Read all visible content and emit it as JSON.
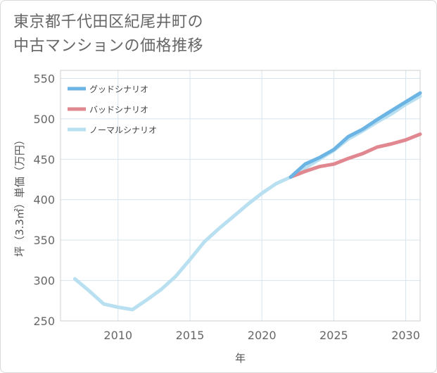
{
  "title_lines": [
    "東京都千代田区紀尾井町の",
    "中古マンションの価格推移"
  ],
  "chart_data": {
    "type": "line",
    "xlabel": "年",
    "ylabel": "坪（3.3㎡）単価（万円）",
    "xlim": [
      2006,
      2031
    ],
    "ylim": [
      250,
      560
    ],
    "x_ticks": [
      2010,
      2015,
      2020,
      2025,
      2030
    ],
    "y_ticks": [
      250,
      300,
      350,
      400,
      450,
      500,
      550
    ],
    "grid": true,
    "legend_position": "top-left",
    "series": [
      {
        "name": "グッドシナリオ",
        "color": "#6cb4e4",
        "x": [
          2022,
          2023,
          2024,
          2025,
          2026,
          2027,
          2028,
          2029,
          2030,
          2031
        ],
        "y": [
          428,
          444,
          452,
          462,
          478,
          487,
          499,
          510,
          521,
          532
        ]
      },
      {
        "name": "バッドシナリオ",
        "color": "#e0878f",
        "x": [
          2022,
          2023,
          2024,
          2025,
          2026,
          2027,
          2028,
          2029,
          2030,
          2031
        ],
        "y": [
          428,
          435,
          441,
          444,
          451,
          457,
          465,
          469,
          474,
          481
        ]
      },
      {
        "name": "ノーマルシナリオ",
        "color": "#b9e0f0",
        "x": [
          2007,
          2008,
          2009,
          2010,
          2011,
          2012,
          2013,
          2014,
          2015,
          2016,
          2017,
          2018,
          2019,
          2020,
          2021,
          2022,
          2023,
          2024,
          2025,
          2026,
          2027,
          2028,
          2029,
          2030,
          2031
        ],
        "y": [
          302,
          287,
          271,
          267,
          264,
          276,
          289,
          305,
          326,
          348,
          364,
          379,
          394,
          408,
          420,
          428,
          439,
          450,
          461,
          475,
          485,
          496,
          506,
          518,
          528
        ]
      }
    ]
  }
}
